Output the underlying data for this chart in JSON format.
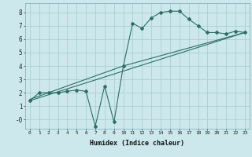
{
  "xlabel": "Humidex (Indice chaleur)",
  "bg_color": "#cce8ec",
  "grid_color": "#aacfd4",
  "line_color": "#2d6e68",
  "xlim": [
    -0.5,
    23.5
  ],
  "ylim": [
    -0.7,
    8.7
  ],
  "xticks": [
    0,
    1,
    2,
    3,
    4,
    5,
    6,
    7,
    8,
    9,
    10,
    11,
    12,
    13,
    14,
    15,
    16,
    17,
    18,
    19,
    20,
    21,
    22,
    23
  ],
  "yticks": [
    0,
    1,
    2,
    3,
    4,
    5,
    6,
    7,
    8
  ],
  "ytick_labels": [
    "-0",
    "1",
    "2",
    "3",
    "4",
    "5",
    "6",
    "7",
    "8"
  ],
  "series1_x": [
    0,
    1,
    2,
    3,
    4,
    5,
    6,
    7,
    8,
    9,
    10,
    11,
    12,
    13,
    14,
    15,
    16,
    17,
    18,
    19,
    20,
    21,
    22,
    23
  ],
  "series1_y": [
    1.4,
    2.0,
    2.0,
    2.0,
    2.1,
    2.2,
    2.1,
    -0.5,
    2.5,
    -0.2,
    4.0,
    7.2,
    6.8,
    7.6,
    8.0,
    8.1,
    8.1,
    7.5,
    7.0,
    6.5,
    6.5,
    6.4,
    6.6,
    6.5
  ],
  "series2_x": [
    0,
    23
  ],
  "series2_y": [
    1.4,
    6.5
  ],
  "series3_x": [
    0,
    10,
    23
  ],
  "series3_y": [
    1.5,
    4.0,
    6.5
  ]
}
